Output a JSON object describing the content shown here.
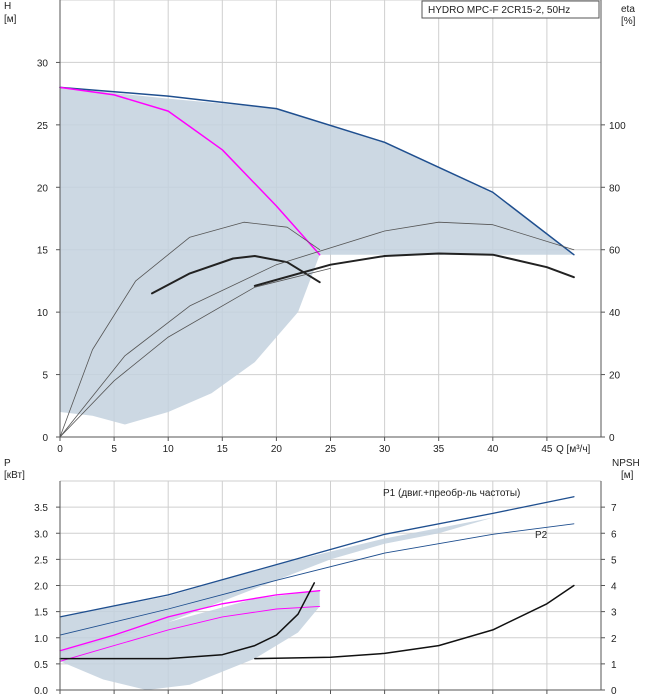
{
  "chart_data": [
    {
      "type": "line",
      "panel": "head-efficiency",
      "legend_box": "HYDRO MPC-F 2CR15-2, 50Hz",
      "ylabel_left": "H",
      "ylabel_left_unit": "[м]",
      "ylabel_right": "eta",
      "ylabel_right_unit": "[%]",
      "xlabel": "Q [м³/ч]",
      "xlim": [
        0,
        50
      ],
      "ylim_left": [
        0,
        35
      ],
      "ylim_right": [
        0,
        140
      ],
      "x_ticks": [
        0,
        5,
        10,
        15,
        20,
        25,
        30,
        35,
        40,
        45
      ],
      "y_ticks_left": [
        0,
        5,
        10,
        15,
        20,
        25,
        30
      ],
      "y_ticks_right": [
        0,
        20,
        40,
        60,
        80,
        100
      ],
      "shaded_region": [
        [
          0,
          28
        ],
        [
          10,
          27.1
        ],
        [
          20,
          26.3
        ],
        [
          30,
          23.6
        ],
        [
          40,
          19.5
        ],
        [
          47.5,
          14.6
        ],
        [
          24,
          14.6
        ],
        [
          22,
          10
        ],
        [
          18,
          6
        ],
        [
          14,
          3.5
        ],
        [
          10,
          2
        ],
        [
          6,
          1
        ],
        [
          3,
          1.7
        ],
        [
          0,
          2
        ]
      ],
      "series": [
        {
          "name": "H two pumps",
          "color": "#1f4f8f",
          "width": 1.5,
          "points": [
            [
              0,
              28
            ],
            [
              10,
              27.3
            ],
            [
              20,
              26.3
            ],
            [
              30,
              23.6
            ],
            [
              40,
              19.6
            ],
            [
              47.5,
              14.6
            ]
          ]
        },
        {
          "name": "H one pump",
          "color": "#ff00ff",
          "width": 1.5,
          "points": [
            [
              0,
              28
            ],
            [
              5,
              27.4
            ],
            [
              10,
              26.1
            ],
            [
              15,
              23
            ],
            [
              20,
              18.5
            ],
            [
              24,
              14.6
            ]
          ]
        },
        {
          "name": "eta one pump",
          "color": "#222222",
          "width": 2,
          "points": [
            [
              8.5,
              11.5
            ],
            [
              12,
              13.1
            ],
            [
              16,
              14.3
            ],
            [
              18,
              14.5
            ],
            [
              21,
              14
            ],
            [
              24,
              12.4
            ]
          ]
        },
        {
          "name": "eta two pumps",
          "color": "#222222",
          "width": 2,
          "points": [
            [
              18,
              12.1
            ],
            [
              25,
              13.8
            ],
            [
              30,
              14.5
            ],
            [
              35,
              14.7
            ],
            [
              40,
              14.6
            ],
            [
              45,
              13.6
            ],
            [
              47.5,
              12.8
            ]
          ]
        },
        {
          "name": "eta envelope 1",
          "color": "#555555",
          "width": 0.8,
          "points": [
            [
              0,
              0
            ],
            [
              3,
              7
            ],
            [
              7,
              12.5
            ],
            [
              12,
              16
            ],
            [
              17,
              17.2
            ],
            [
              21,
              16.8
            ],
            [
              24,
              15
            ]
          ]
        },
        {
          "name": "eta envelope 2",
          "color": "#555555",
          "width": 0.8,
          "points": [
            [
              0,
              0
            ],
            [
              6,
              6.5
            ],
            [
              12,
              10.5
            ],
            [
              20,
              13.8
            ],
            [
              30,
              16.5
            ],
            [
              35,
              17.2
            ],
            [
              40,
              17
            ],
            [
              47.5,
              15
            ]
          ]
        },
        {
          "name": "eta envelope 3",
          "color": "#555555",
          "width": 0.8,
          "points": [
            [
              0,
              0
            ],
            [
              5,
              4.5
            ],
            [
              10,
              8
            ],
            [
              18,
              12
            ],
            [
              25,
              13.5
            ]
          ]
        }
      ]
    },
    {
      "type": "line",
      "panel": "power-npsh",
      "ylabel_left": "P",
      "ylabel_left_unit": "[кВт]",
      "ylabel_right": "NPSH",
      "ylabel_right_unit": "[м]",
      "xlim": [
        0,
        50
      ],
      "ylim_left": [
        0,
        4
      ],
      "ylim_right": [
        0,
        8
      ],
      "y_ticks_left": [
        0.0,
        0.5,
        1.0,
        1.5,
        2.0,
        2.5,
        3.0,
        3.5
      ],
      "y_ticks_left_labels": [
        "0.0",
        "0.5",
        "1.0",
        "1.5",
        "2.0",
        "2.5",
        "3.0",
        "3.5"
      ],
      "y_ticks_right": [
        0,
        1,
        2,
        3,
        4,
        5,
        6,
        7
      ],
      "labels": {
        "p1": "P1 (двиг.+преобр-ль частоты)",
        "p2": "P2"
      },
      "shaded_region_upper": [
        [
          0,
          1.4
        ],
        [
          10,
          1.8
        ],
        [
          20,
          2.4
        ],
        [
          30,
          2.9
        ],
        [
          40,
          3.3
        ],
        [
          47.5,
          3.7
        ],
        [
          40,
          3.3
        ],
        [
          35,
          3.0
        ],
        [
          30,
          2.8
        ],
        [
          25,
          2.5
        ],
        [
          20,
          2.1
        ],
        [
          15,
          1.7
        ],
        [
          10,
          1.3
        ],
        [
          0,
          0.7
        ]
      ],
      "shaded_region_lower": [
        [
          0,
          0.75
        ],
        [
          10,
          1.3
        ],
        [
          18,
          1.75
        ],
        [
          24,
          1.9
        ],
        [
          24,
          1.6
        ],
        [
          22,
          1.1
        ],
        [
          18,
          0.6
        ],
        [
          12,
          0.1
        ],
        [
          8,
          0
        ],
        [
          4,
          0.2
        ],
        [
          0,
          0.55
        ]
      ],
      "series": [
        {
          "name": "P1 two pumps",
          "color": "#1f4f8f",
          "width": 1.3,
          "points": [
            [
              0,
              1.4
            ],
            [
              10,
              1.82
            ],
            [
              20,
              2.4
            ],
            [
              30,
              2.98
            ],
            [
              40,
              3.38
            ],
            [
              47.5,
              3.7
            ]
          ]
        },
        {
          "name": "P2 two pumps",
          "color": "#1f4f8f",
          "width": 0.9,
          "points": [
            [
              0,
              1.05
            ],
            [
              10,
              1.55
            ],
            [
              20,
              2.1
            ],
            [
              30,
              2.62
            ],
            [
              40,
              2.98
            ],
            [
              47.5,
              3.18
            ]
          ]
        },
        {
          "name": "P1 one pump",
          "color": "#ff00ff",
          "width": 1.3,
          "points": [
            [
              0,
              0.75
            ],
            [
              5,
              1.05
            ],
            [
              10,
              1.4
            ],
            [
              15,
              1.65
            ],
            [
              20,
              1.82
            ],
            [
              24,
              1.9
            ]
          ]
        },
        {
          "name": "P2 one pump",
          "color": "#ff00ff",
          "width": 0.9,
          "points": [
            [
              0,
              0.55
            ],
            [
              5,
              0.85
            ],
            [
              10,
              1.15
            ],
            [
              15,
              1.4
            ],
            [
              20,
              1.55
            ],
            [
              24,
              1.6
            ]
          ]
        },
        {
          "name": "NPSH one pump",
          "color": "#111111",
          "width": 1.5,
          "npsh": true,
          "points": [
            [
              0,
              1.2
            ],
            [
              10,
              1.2
            ],
            [
              15,
              1.35
            ],
            [
              18,
              1.7
            ],
            [
              20,
              2.1
            ],
            [
              22,
              2.9
            ],
            [
              23.5,
              4.1
            ]
          ]
        },
        {
          "name": "NPSH two pumps",
          "color": "#111111",
          "width": 1.5,
          "npsh": true,
          "points": [
            [
              18,
              1.2
            ],
            [
              25,
              1.25
            ],
            [
              30,
              1.4
            ],
            [
              35,
              1.7
            ],
            [
              40,
              2.3
            ],
            [
              45,
              3.3
            ],
            [
              47.5,
              4
            ]
          ]
        }
      ]
    }
  ]
}
